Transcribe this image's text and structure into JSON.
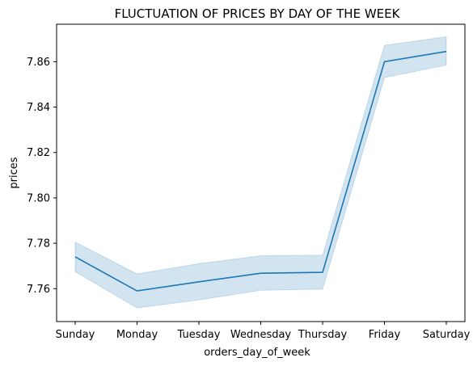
{
  "chart_data": {
    "type": "line",
    "title": "FLUCTUATION OF PRICES BY DAY OF THE WEEK",
    "xlabel": "orders_day_of_week",
    "ylabel": "prices",
    "categories": [
      "Sunday",
      "Monday",
      "Tuesday",
      "Wednesday",
      "Thursday",
      "Friday",
      "Saturday"
    ],
    "series": [
      {
        "values": [
          7.774,
          7.759,
          7.763,
          7.7668,
          7.7672,
          7.86,
          7.8645
        ],
        "ci_lower": [
          7.7675,
          7.7515,
          7.755,
          7.7593,
          7.7598,
          7.853,
          7.8585
        ],
        "ci_upper": [
          7.7805,
          7.7665,
          7.771,
          7.7745,
          7.7748,
          7.8672,
          7.871
        ]
      }
    ],
    "ylim": [
      7.7455,
      7.8765
    ],
    "yticks": [
      "7.76",
      "7.78",
      "7.80",
      "7.82",
      "7.84",
      "7.86"
    ],
    "ytick_values": [
      7.76,
      7.78,
      7.8,
      7.82,
      7.84,
      7.86
    ],
    "grid": false,
    "colors": {
      "line": "#1f77b4",
      "band": "#1f77b4"
    }
  }
}
